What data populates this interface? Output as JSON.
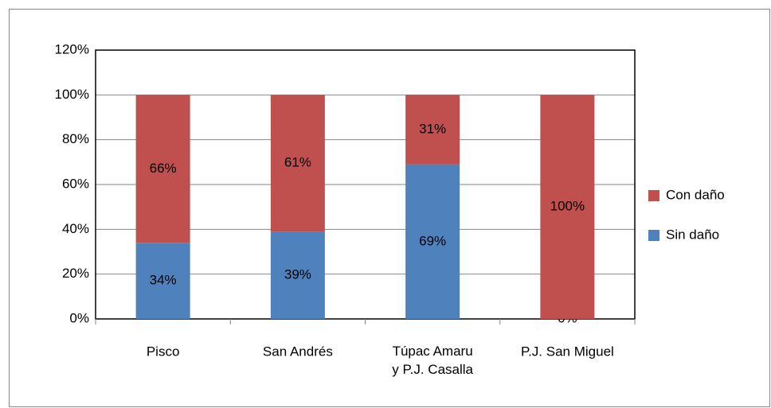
{
  "chart_data": {
    "type": "stacked_bar",
    "categories": [
      "Pisco",
      "San Andrés",
      "Túpac Amaru\ny P.J. Casalla",
      "P.J. San Miguel"
    ],
    "series": [
      {
        "name": "Sin daño",
        "color": "#4f81bd",
        "values": [
          34,
          39,
          69,
          0
        ],
        "value_labels": [
          "34%",
          "39%",
          "69%",
          "0%"
        ]
      },
      {
        "name": "Con daño",
        "color": "#c0504d",
        "values": [
          66,
          61,
          31,
          100
        ],
        "value_labels": [
          "66%",
          "61%",
          "31%",
          "100%"
        ]
      }
    ],
    "ylim": [
      0,
      120
    ],
    "yticks": [
      {
        "value": 0,
        "label": "0%"
      },
      {
        "value": 20,
        "label": "20%"
      },
      {
        "value": 40,
        "label": "40%"
      },
      {
        "value": 60,
        "label": "60%"
      },
      {
        "value": 80,
        "label": "80%"
      },
      {
        "value": 100,
        "label": "100%"
      },
      {
        "value": 120,
        "label": "120%"
      }
    ],
    "grid": true,
    "legend": "right"
  }
}
